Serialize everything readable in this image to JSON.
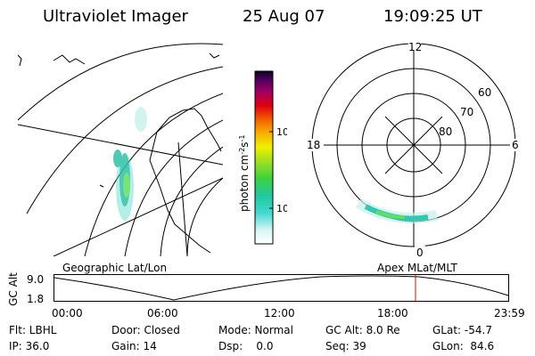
{
  "header": {
    "instrument": "Ultraviolet Imager",
    "date": "25 Aug 07",
    "time": "19:09:25 UT"
  },
  "geo_panel": {
    "label": "Geographic Lat/Lon"
  },
  "apex_panel": {
    "label": "Apex MLat/MLT",
    "mlt_labels": {
      "top": "12",
      "left": "18",
      "right": "6",
      "bottom": "0"
    },
    "lat_labels": [
      "60",
      "70",
      "80"
    ]
  },
  "colorbar": {
    "unit": "photon cm",
    "unit_exp1": "-2",
    "unit_mid": "s",
    "unit_exp2": "-1",
    "ticks": [
      "100",
      "10"
    ]
  },
  "altitude_plot": {
    "ylabel": "GC Alt",
    "ytick_top": "9.0",
    "ytick_bottom": "1.8",
    "xticks": [
      "00:00",
      "06:00",
      "12:00",
      "18:00",
      "23:59"
    ],
    "marker_color": "#dd0000"
  },
  "info": {
    "row1": {
      "flt": "Flt: LBHL",
      "door": "Door: Closed",
      "mode": "Mode: Normal",
      "gcalt": "GC Alt: 8.0 Re",
      "glat": "GLat: -54.7"
    },
    "row2": {
      "ip": "IP: 36.0",
      "gain": "Gain: 14",
      "dsp": "Dsp:    0.0",
      "seq": "Seq: 39",
      "glon": "GLon:  84.6"
    }
  }
}
